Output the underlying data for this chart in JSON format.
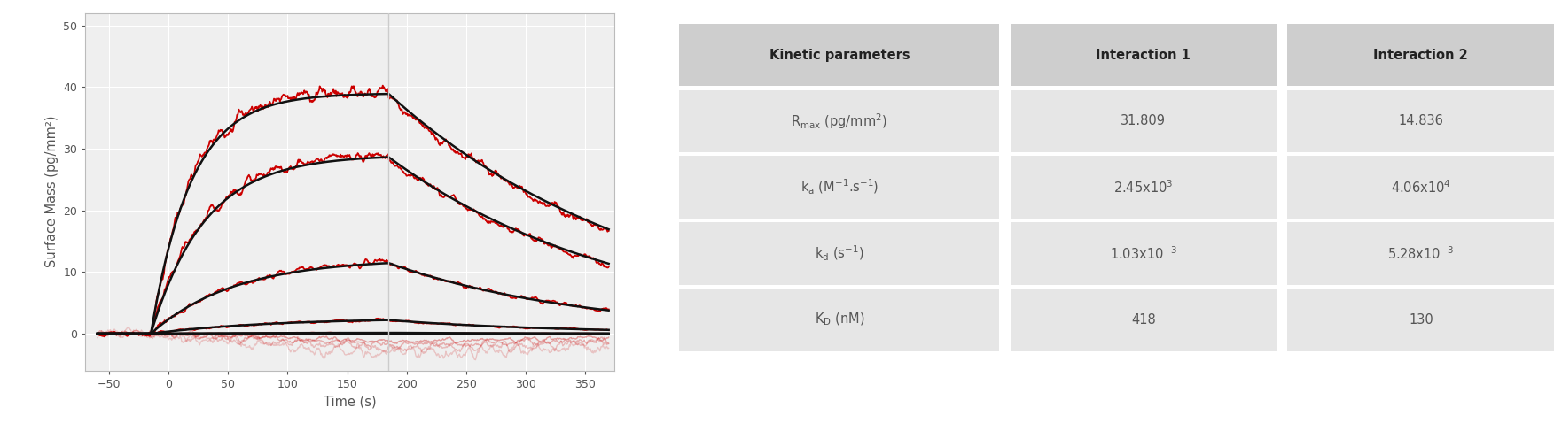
{
  "fig_width": 17.53,
  "fig_height": 4.87,
  "dpi": 100,
  "plot_bg": "#efefef",
  "fig_bg": "#ffffff",
  "grid_color": "#ffffff",
  "axis_color": "#555555",
  "xlabel": "Time (s)",
  "ylabel": "Surface Mass (pg/mm²)",
  "xlim": [
    -70,
    375
  ],
  "ylim": [
    -6,
    52
  ],
  "xticks": [
    -50,
    0,
    50,
    100,
    150,
    200,
    250,
    300,
    350
  ],
  "yticks": [
    0,
    10,
    20,
    30,
    40,
    50
  ],
  "t_start": -60,
  "t_assoc_start": -15,
  "t_dissoc_start": 185,
  "t_end": 370,
  "curves": [
    {
      "Rmax": 46.0,
      "ka": 0.025,
      "kd": 0.0045,
      "C": 1.0,
      "alpha_r": 1.0
    },
    {
      "Rmax": 37.5,
      "ka": 0.02,
      "kd": 0.005,
      "C": 0.85,
      "alpha_r": 1.0
    },
    {
      "Rmax": 21.0,
      "ka": 0.015,
      "kd": 0.006,
      "C": 0.55,
      "alpha_r": 1.0
    },
    {
      "Rmax": 9.0,
      "ka": 0.01,
      "kd": 0.007,
      "C": 0.28,
      "alpha_r": 1.0
    },
    {
      "Rmax": 2.5,
      "ka": 0.006,
      "kd": 0.008,
      "C": 0.1,
      "alpha_r": 0.55
    },
    {
      "Rmax": 0.6,
      "ka": 0.003,
      "kd": 0.009,
      "C": 0.03,
      "alpha_r": 0.35
    }
  ],
  "ghost_curves": [
    {
      "Rmax": -1.2,
      "alpha_r": 0.35
    },
    {
      "Rmax": -1.8,
      "alpha_r": 0.28
    },
    {
      "Rmax": -2.5,
      "alpha_r": 0.22
    },
    {
      "Rmax": -3.5,
      "alpha_r": 0.18
    }
  ],
  "noise_scale": 0.012,
  "black_lw": 1.8,
  "red_lw": 1.3,
  "table_header_bg": "#cecece",
  "table_row_bg": "#e6e6e6",
  "table_header_color": "#222222",
  "table_text_color": "#555555",
  "table_headers": [
    "Kinetic parameters",
    "Interaction 1",
    "Interaction 2"
  ],
  "table_rows": [
    [
      "R$_{\\mathrm{max}}$ (pg/mm$^2$)",
      "31.809",
      "14.836"
    ],
    [
      "k$_{\\mathrm{a}}$ (M$^{-1}$.s$^{-1}$)",
      "2.45x10$^3$",
      "4.06x10$^4$"
    ],
    [
      "k$_{\\mathrm{d}}$ (s$^{-1}$)",
      "1.03x10$^{-3}$",
      "5.28x10$^{-3}$"
    ],
    [
      "K$_{\\mathrm{D}}$ (nM)",
      "418",
      "130"
    ]
  ]
}
